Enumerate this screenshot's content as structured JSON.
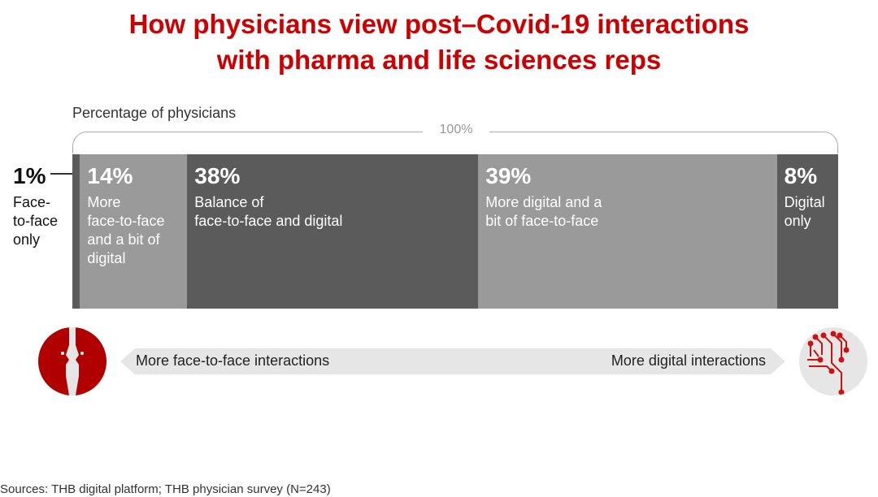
{
  "title_line1": "How physicians view post–Covid-19 interactions",
  "title_line2": "with pharma and life sciences reps",
  "colors": {
    "title": "#cc0000",
    "dark": "#5b5b5b",
    "light": "#9a9a9a",
    "icon": "#b00000"
  },
  "chart_data": {
    "type": "bar",
    "stacked": true,
    "ylabel": "Percentage of physicians",
    "total_label": "100%",
    "categories": [
      "Face-to-face only",
      "More face-to-face and a bit of digital",
      "Balance of face-to-face and digital",
      "More digital and a bit of face-to-face",
      "Digital only"
    ],
    "values": [
      1,
      14,
      38,
      39,
      8
    ],
    "value_labels": [
      "1%",
      "14%",
      "38%",
      "39%",
      "8%"
    ],
    "segment_labels": [
      "Face-\nto-face\nonly",
      "More\nface-to-face\nand a bit of\ndigital",
      "Balance of\nface-to-face and digital",
      "More digital and a\nbit of face-to-face",
      "Digital\nonly"
    ],
    "segment_colors": [
      "#5b5b5b",
      "#9a9a9a",
      "#5b5b5b",
      "#9a9a9a",
      "#5b5b5b"
    ]
  },
  "scale": {
    "left_label": "More face-to-face interactions",
    "right_label": "More digital interactions",
    "left_icon": "faces-profile-icon",
    "right_icon": "circuit-brain-icon"
  },
  "source": "Sources: THB digital platform; THB physician survey (N=243)"
}
